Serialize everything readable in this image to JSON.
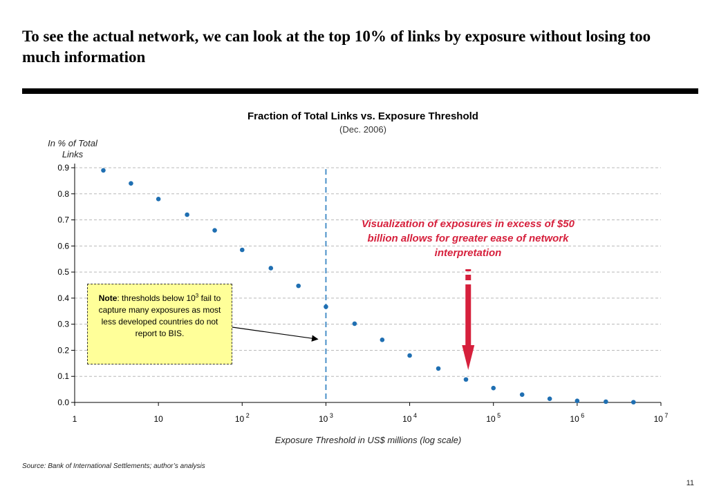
{
  "slide": {
    "title": "To see the actual network, we can look at the top 10% of links by exposure without losing too much information",
    "source": "Source: Bank of International Settlements; author’s analysis",
    "page_number": "11"
  },
  "chart_data": {
    "type": "scatter",
    "title": "Fraction of Total Links vs. Exposure Threshold",
    "subtitle": "(Dec. 2006)",
    "ylabel": "In % of Total Links",
    "xlabel": "Exposure Threshold in US$ millions (log scale)",
    "x_scale": "log",
    "xlim": [
      1,
      10000000
    ],
    "ylim": [
      0,
      0.9
    ],
    "grid": "horizontal dashed",
    "x_ticks": [
      {
        "base": "1",
        "exp": ""
      },
      {
        "base": "10",
        "exp": ""
      },
      {
        "base": "10",
        "exp": "2"
      },
      {
        "base": "10",
        "exp": "3"
      },
      {
        "base": "10",
        "exp": "4"
      },
      {
        "base": "10",
        "exp": "5"
      },
      {
        "base": "10",
        "exp": "6"
      },
      {
        "base": "10",
        "exp": "7"
      }
    ],
    "y_ticks": [
      "0.0",
      "0.1",
      "0.2",
      "0.3",
      "0.4",
      "0.5",
      "0.6",
      "0.7",
      "0.8",
      "0.9"
    ],
    "x": [
      2.2,
      4.7,
      10,
      22,
      47,
      100,
      220,
      470,
      1000,
      2200,
      4700,
      10000,
      22000,
      47000,
      100000,
      220000,
      470000,
      1000000,
      2200000,
      4700000
    ],
    "y": [
      0.89,
      0.84,
      0.78,
      0.72,
      0.66,
      0.585,
      0.515,
      0.447,
      0.367,
      0.302,
      0.24,
      0.18,
      0.13,
      0.088,
      0.055,
      0.03,
      0.014,
      0.006,
      0.003,
      0.001
    ],
    "series_color": "#1f6fb2",
    "threshold_line": {
      "x": 1000,
      "color": "#4a90c8"
    },
    "annotation_highlight": {
      "text": "Visualization of exposures in excess of $50 billion allows for greater ease of network interpretation",
      "color": "#d6203c",
      "arrow_x": 50000
    },
    "note": {
      "bold": "Note",
      "text_before_sup": ": thresholds below 10",
      "sup": "3",
      "text_after_sup": " fail to capture many exposures as most less developed countries do not report to BIS.",
      "arrow_target_x": 1000,
      "arrow_target_y": 0.24
    }
  }
}
